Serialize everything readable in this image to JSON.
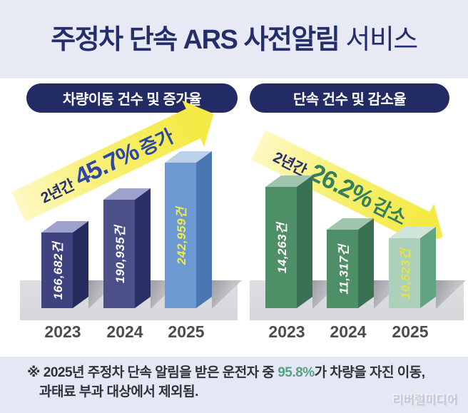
{
  "page": {
    "title_main": "주정차 단속 ARS 사전알림",
    "title_suffix": "서비스"
  },
  "charts": [
    {
      "header": "차량이동 건수 및 증가율",
      "arrow": {
        "period": "2년간",
        "percent": "45.7%",
        "word": "증가",
        "direction": "up"
      },
      "bars": [
        {
          "year": "2023",
          "label": "166,682건"
        },
        {
          "year": "2024",
          "label": "190,935건"
        },
        {
          "year": "2025",
          "label": "242,959건"
        }
      ]
    },
    {
      "header": "단속 건수 및 감소율",
      "arrow": {
        "period": "2년간",
        "percent": "26.2%",
        "word": "감소",
        "direction": "down"
      },
      "bars": [
        {
          "year": "2023",
          "label": "14,263건"
        },
        {
          "year": "2024",
          "label": "11,317건"
        },
        {
          "year": "2025",
          "label": "10,523건"
        }
      ]
    }
  ],
  "footnote": {
    "marker": "※",
    "line1_before": "2025년 주정차 단속 알림을 받은 운전자 중 ",
    "highlight": "95.8%",
    "line1_after": "가 차량을 자진 이동,",
    "line2": "과태료 부과 대상에서 제외됨."
  },
  "watermark": "리버럴미디어",
  "colors": {
    "header_background": "#e7eaf5",
    "footer_background": "#e4e8f4",
    "title_navy": "#242e6a",
    "pill_navy": "#222b64",
    "arrow_yellow": "#f4ea45",
    "navy_bar_front": "#3e4380",
    "blue_bar_front": "#6d99d2",
    "green_bar_front": "#4f8f68",
    "mint_bar_front": "#abd1bb",
    "highlight_value_yellow": "#f2ea4b",
    "footnote_highlight_green": "#56a183"
  },
  "chart_data": [
    {
      "type": "bar",
      "title": "차량이동 건수 및 증가율",
      "categories": [
        "2023",
        "2024",
        "2025"
      ],
      "values": [
        166682,
        190935,
        242959
      ],
      "unit": "건",
      "annotation": "2년간 45.7% 증가",
      "trend": "increase",
      "style": "3d-bars, yellow upward arrow, 2025 bar highlighted in blue"
    },
    {
      "type": "bar",
      "title": "단속 건수 및 감소율",
      "categories": [
        "2023",
        "2024",
        "2025"
      ],
      "values": [
        14263,
        11317,
        10523
      ],
      "unit": "건",
      "annotation": "2년간 26.2% 감소",
      "trend": "decrease",
      "style": "3d-bars, yellow downward arrow, 2025 bar highlighted in mint"
    }
  ]
}
